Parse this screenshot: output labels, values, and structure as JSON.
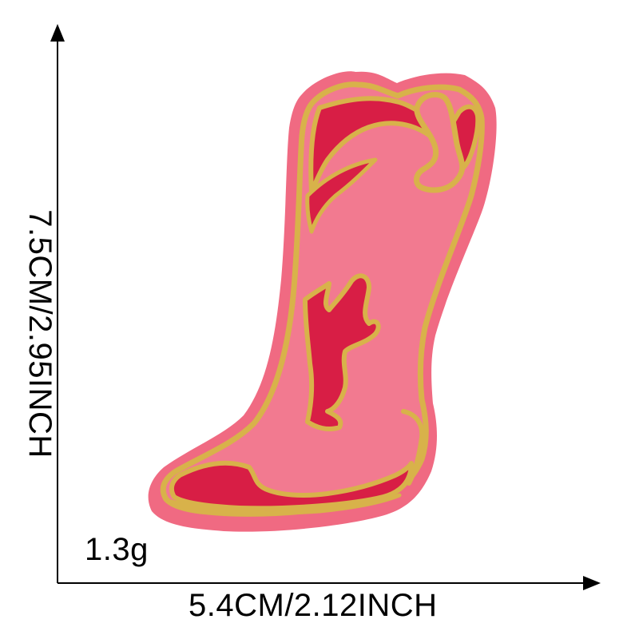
{
  "dimensions": {
    "width_label": "5.4CM/2.12INCH",
    "height_label": "7.5CM/2.95INCH",
    "weight_label": "1.3g"
  },
  "product": {
    "icon": "cowboy-boot-patch-icon"
  },
  "colors": {
    "patch_pink": "#f06a82",
    "patch_border": "#e85a75",
    "boot_fill": "#f27a90",
    "accent_red": "#d81e45",
    "gold_thread": "#d8b24a",
    "axis": "#000000"
  }
}
